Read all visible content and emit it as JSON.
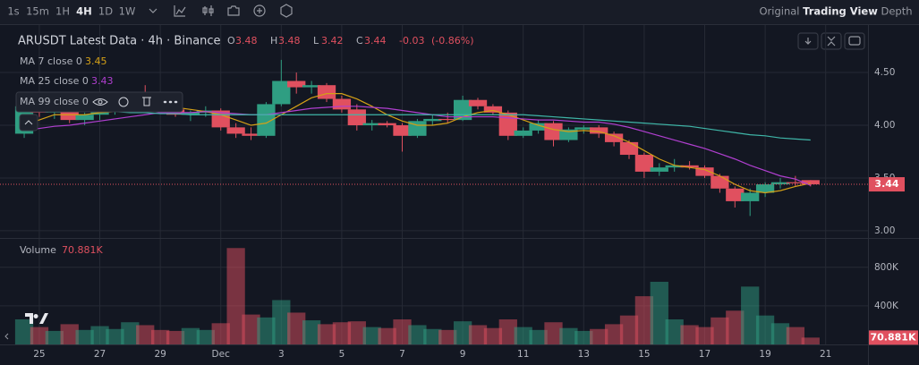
{
  "toolbar": {
    "intervals": [
      "1s",
      "15m",
      "1H",
      "4H",
      "1D",
      "1W"
    ],
    "active": "4H",
    "views": [
      "Original",
      "Trading View",
      "Depth"
    ],
    "active_view": "Trading View"
  },
  "legend": {
    "symbol": "ARUSDT Latest Data · 4h · Binance",
    "o": "O",
    "h": "H",
    "l": "L",
    "c": "C",
    "change": -0.03,
    "change_pct": "(-0.86%)",
    "ma7": "MA 7 close 0",
    "ma25": "MA 25 close 0",
    "ma99": "MA 99 close 0",
    "volume": "Volume",
    "volume_value": "70.881K"
  },
  "chart_data": {
    "type": "candlestick",
    "x": [
      0.5,
      1,
      1.5,
      2,
      2.5,
      3,
      3.5,
      4,
      4.5,
      5,
      5.5,
      6,
      6.5,
      7,
      7.5,
      8,
      8.5,
      9,
      9.5,
      10,
      10.5,
      11,
      11.5,
      12,
      12.5,
      13,
      13.5,
      14,
      14.5,
      15,
      15.5,
      16,
      16.5,
      17,
      17.5,
      18,
      18.5,
      19,
      19.5,
      20,
      20.5,
      21,
      21.5,
      22,
      22.5,
      23,
      23.5,
      24,
      24.5,
      25,
      25.5,
      26,
      26.5
    ],
    "open": [
      3.92,
      4.18,
      4.12,
      4.16,
      4.05,
      4.1,
      4.14,
      4.18,
      4.24,
      4.2,
      4.15,
      4.1,
      4.12,
      4.14,
      3.98,
      3.92,
      3.9,
      4.2,
      4.42,
      4.36,
      4.38,
      4.25,
      4.15,
      4.0,
      4.02,
      4.0,
      3.9,
      4.04,
      4.06,
      4.05,
      4.24,
      4.18,
      4.12,
      3.9,
      3.95,
      4.02,
      3.86,
      3.96,
      3.98,
      3.92,
      3.84,
      3.72,
      3.56,
      3.6,
      3.62,
      3.6,
      3.52,
      3.4,
      3.28,
      3.36,
      3.44,
      3.46,
      3.48
    ],
    "high": [
      4.22,
      4.22,
      4.2,
      4.18,
      4.12,
      4.16,
      4.2,
      4.28,
      4.38,
      4.26,
      4.2,
      4.14,
      4.18,
      4.16,
      4.02,
      3.98,
      4.22,
      4.62,
      4.5,
      4.42,
      4.4,
      4.28,
      4.2,
      4.05,
      4.04,
      4.02,
      4.06,
      4.1,
      4.12,
      4.28,
      4.26,
      4.2,
      4.14,
      3.98,
      4.05,
      4.04,
      3.98,
      4.0,
      4.0,
      3.94,
      3.86,
      3.74,
      3.64,
      3.68,
      3.66,
      3.62,
      3.54,
      3.42,
      3.4,
      3.46,
      3.5,
      3.52,
      3.48
    ],
    "low": [
      3.88,
      4.08,
      4.06,
      4.02,
      4.0,
      4.05,
      4.1,
      4.12,
      4.18,
      4.12,
      4.08,
      4.04,
      4.08,
      3.95,
      3.88,
      3.86,
      3.88,
      4.18,
      4.3,
      4.3,
      4.22,
      4.12,
      3.95,
      3.95,
      3.98,
      3.75,
      3.88,
      4.0,
      4.02,
      4.04,
      4.15,
      4.1,
      3.86,
      3.88,
      3.92,
      3.8,
      3.84,
      3.92,
      3.88,
      3.8,
      3.68,
      3.5,
      3.52,
      3.56,
      3.58,
      3.5,
      3.36,
      3.22,
      3.14,
      3.32,
      3.4,
      3.42,
      3.42
    ],
    "close": [
      4.18,
      4.12,
      4.16,
      4.05,
      4.1,
      4.14,
      4.18,
      4.24,
      4.2,
      4.15,
      4.1,
      4.12,
      4.14,
      3.98,
      3.92,
      3.9,
      4.2,
      4.42,
      4.36,
      4.38,
      4.25,
      4.15,
      4.0,
      4.02,
      4.0,
      3.9,
      4.04,
      4.06,
      4.05,
      4.24,
      4.18,
      4.12,
      3.9,
      3.95,
      4.02,
      3.86,
      3.96,
      3.98,
      3.92,
      3.84,
      3.72,
      3.56,
      3.6,
      3.62,
      3.6,
      3.52,
      3.4,
      3.28,
      3.36,
      3.44,
      3.46,
      3.45,
      3.44
    ],
    "volume": [
      260000,
      180000,
      140000,
      210000,
      150000,
      190000,
      160000,
      230000,
      200000,
      150000,
      140000,
      170000,
      150000,
      220000,
      1000000,
      310000,
      280000,
      460000,
      330000,
      250000,
      210000,
      230000,
      240000,
      180000,
      170000,
      260000,
      200000,
      160000,
      150000,
      240000,
      200000,
      170000,
      260000,
      180000,
      150000,
      230000,
      170000,
      140000,
      160000,
      210000,
      300000,
      500000,
      650000,
      260000,
      200000,
      180000,
      280000,
      350000,
      600000,
      300000,
      220000,
      180000,
      70881
    ],
    "series": [
      {
        "name": "MA 7",
        "color": "#d4a017",
        "values": [
          4.0,
          4.05,
          4.1,
          4.1,
          4.1,
          4.12,
          4.13,
          4.15,
          4.17,
          4.18,
          4.17,
          4.15,
          4.13,
          4.1,
          4.05,
          4.0,
          4.02,
          4.1,
          4.18,
          4.26,
          4.3,
          4.3,
          4.25,
          4.18,
          4.1,
          4.04,
          4.0,
          4.0,
          4.02,
          4.08,
          4.12,
          4.14,
          4.1,
          4.05,
          4.0,
          3.96,
          3.94,
          3.95,
          3.94,
          3.9,
          3.84,
          3.76,
          3.68,
          3.62,
          3.6,
          3.58,
          3.52,
          3.44,
          3.38,
          3.36,
          3.38,
          3.42,
          3.45
        ]
      },
      {
        "name": "MA 25",
        "color": "#b03fd0",
        "values": [
          3.95,
          3.97,
          3.99,
          4.0,
          4.02,
          4.04,
          4.06,
          4.08,
          4.1,
          4.12,
          4.12,
          4.12,
          4.13,
          4.12,
          4.11,
          4.1,
          4.1,
          4.12,
          4.14,
          4.16,
          4.17,
          4.18,
          4.18,
          4.17,
          4.16,
          4.14,
          4.12,
          4.1,
          4.08,
          4.08,
          4.08,
          4.08,
          4.07,
          4.06,
          4.05,
          4.05,
          4.04,
          4.03,
          4.03,
          4.01,
          3.98,
          3.94,
          3.9,
          3.86,
          3.82,
          3.78,
          3.73,
          3.68,
          3.62,
          3.57,
          3.52,
          3.49,
          3.43
        ]
      },
      {
        "name": "MA 99",
        "color": "#3fb6a8",
        "values": [
          4.22,
          4.2,
          4.18,
          4.16,
          4.15,
          4.14,
          4.13,
          4.12,
          4.12,
          4.11,
          4.11,
          4.1,
          4.1,
          4.1,
          4.1,
          4.1,
          4.1,
          4.1,
          4.1,
          4.1,
          4.1,
          4.1,
          4.1,
          4.1,
          4.1,
          4.1,
          4.1,
          4.1,
          4.1,
          4.1,
          4.1,
          4.1,
          4.1,
          4.1,
          4.09,
          4.08,
          4.07,
          4.06,
          4.05,
          4.04,
          4.03,
          4.02,
          4.01,
          4.0,
          3.99,
          3.97,
          3.95,
          3.93,
          3.91,
          3.9,
          3.88,
          3.87,
          3.86
        ]
      }
    ],
    "up_color": "#2f9e82",
    "down_color": "#e0505f",
    "xlim": [
      -0.3,
      28.4
    ],
    "xticks": [
      {
        "value": 1,
        "label": "25"
      },
      {
        "value": 3,
        "label": "27"
      },
      {
        "value": 5,
        "label": "29"
      },
      {
        "value": 7,
        "label": "Dec"
      },
      {
        "value": 9,
        "label": "3"
      },
      {
        "value": 11,
        "label": "5"
      },
      {
        "value": 13,
        "label": "7"
      },
      {
        "value": 15,
        "label": "9"
      },
      {
        "value": 17,
        "label": "11"
      },
      {
        "value": 19,
        "label": "13"
      },
      {
        "value": 21,
        "label": "15"
      },
      {
        "value": 23,
        "label": "17"
      },
      {
        "value": 25,
        "label": "19"
      },
      {
        "value": 27,
        "label": "21"
      }
    ],
    "ylim": [
      2.94,
      4.95
    ],
    "yticks": [
      {
        "value": 3,
        "label": "3.00"
      },
      {
        "value": 3.5,
        "label": "3.50"
      },
      {
        "value": 4,
        "label": "4.00"
      },
      {
        "value": 4.5,
        "label": "4.50"
      }
    ],
    "volume_ylim": [
      0,
      1086000
    ],
    "volume_yticks": [
      {
        "value": 400000,
        "label": "400K"
      },
      {
        "value": 800000,
        "label": "800K"
      }
    ],
    "grid": true
  }
}
